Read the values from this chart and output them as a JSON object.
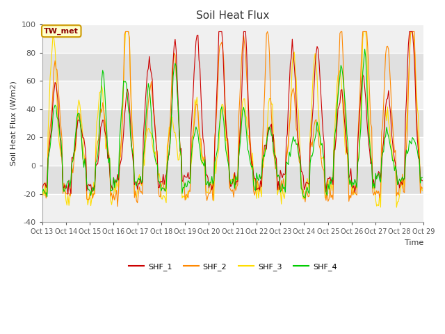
{
  "title": "Soil Heat Flux",
  "ylabel": "Soil Heat Flux (W/m2)",
  "xlabel": "Time",
  "ylim": [
    -40,
    100
  ],
  "series_colors": [
    "#cc0000",
    "#ff8800",
    "#ffdd00",
    "#00cc00"
  ],
  "series_names": [
    "SHF_1",
    "SHF_2",
    "SHF_3",
    "SHF_4"
  ],
  "annotation_text": "TW_met",
  "annotation_color": "#8b0000",
  "annotation_bg": "#ffffcc",
  "annotation_edge": "#cc9900",
  "yticks": [
    -40,
    -20,
    0,
    20,
    40,
    60,
    80,
    100
  ],
  "band_colors": [
    "#f0f0f0",
    "#e0e0e0"
  ],
  "fig_bg": "#ffffff",
  "plot_bg": "#ffffff",
  "n_days": 16,
  "pts_per_day": 24,
  "seed": 42,
  "xtick_labels": [
    "Oct 13",
    "Oct 14",
    "Oct 15",
    "Oct 16",
    "Oct 17",
    "Oct 18",
    "Oct 19",
    "Oct 20",
    "Oct 21",
    "Oct 22",
    "Oct 23",
    "Oct 24",
    "Oct 25",
    "Oct 26",
    "Oct 27",
    "Oct 28",
    "Oct 29"
  ]
}
